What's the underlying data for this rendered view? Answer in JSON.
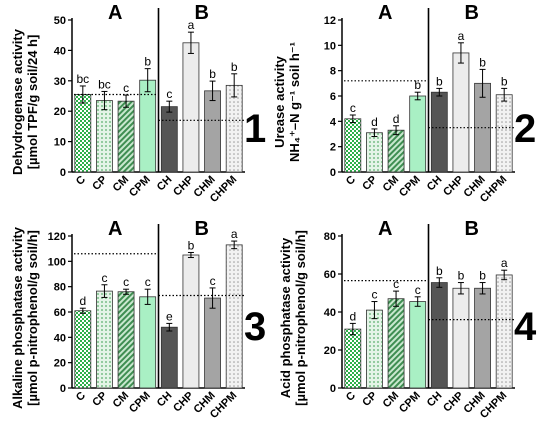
{
  "chart_data": [
    {
      "type": "bar",
      "panel_number": "1",
      "ylabel_line1": "Dehydrogenase activity",
      "ylabel_line2": "[µmol TPF/g soil/24 h]",
      "ylim": [
        0,
        50
      ],
      "yticks": [
        0,
        10,
        20,
        30,
        40,
        50
      ],
      "groups": [
        "A",
        "B"
      ],
      "categories": [
        "C",
        "CP",
        "CM",
        "CPM",
        "CH",
        "CHP",
        "CHM",
        "CHPM"
      ],
      "values": [
        25.5,
        23.5,
        23.3,
        30.2,
        21.5,
        42.5,
        26.7,
        28.5
      ],
      "errors": [
        2.8,
        3.0,
        2.0,
        3.8,
        1.8,
        3.5,
        3.2,
        3.8
      ],
      "letters": [
        "bc",
        "bc",
        "c",
        "b",
        "c",
        "a",
        "b",
        "b"
      ],
      "ref_lines": [
        25.5,
        17.0
      ]
    },
    {
      "type": "bar",
      "panel_number": "2",
      "ylabel_line1": "Urease activity",
      "ylabel_line2": "NH₄⁺–N g⁻¹ soil h⁻¹",
      "ylim": [
        0,
        12
      ],
      "yticks": [
        0,
        2,
        4,
        6,
        8,
        10,
        12
      ],
      "groups": [
        "A",
        "B"
      ],
      "categories": [
        "C",
        "CP",
        "CM",
        "CPM",
        "CH",
        "CHP",
        "CHM",
        "CHPM"
      ],
      "values": [
        4.2,
        3.1,
        3.3,
        6.0,
        6.3,
        9.4,
        7.0,
        6.1
      ],
      "errors": [
        0.3,
        0.3,
        0.35,
        0.3,
        0.3,
        0.8,
        1.1,
        0.5
      ],
      "letters": [
        "c",
        "d",
        "d",
        "b",
        "b",
        "a",
        "b",
        "b"
      ],
      "ref_lines": [
        7.2,
        3.5
      ]
    },
    {
      "type": "bar",
      "panel_number": "3",
      "ylabel_line1": "Alkaline phosphatase activity",
      "ylabel_line2": "[µmol p-nitrophenol/g soil/h]",
      "ylim": [
        0,
        120
      ],
      "yticks": [
        0,
        20,
        40,
        60,
        80,
        100,
        120
      ],
      "groups": [
        "A",
        "B"
      ],
      "categories": [
        "C",
        "CP",
        "CM",
        "CPM",
        "CH",
        "CHP",
        "CHM",
        "CHPM"
      ],
      "values": [
        61,
        76.5,
        76,
        72,
        48,
        105,
        71,
        113
      ],
      "errors": [
        2,
        5,
        2,
        6,
        3,
        2,
        8,
        3
      ],
      "letters": [
        "d",
        "c",
        "c",
        "c",
        "e",
        "b",
        "c",
        "a"
      ],
      "ref_lines": [
        106,
        73
      ]
    },
    {
      "type": "bar",
      "panel_number": "4",
      "ylabel_line1": "Acid phosphatase activity",
      "ylabel_line2": "[µmol p-nitrophenol/g soil/h]",
      "ylim": [
        0,
        80
      ],
      "yticks": [
        0,
        20,
        40,
        60,
        80
      ],
      "groups": [
        "A",
        "B"
      ],
      "categories": [
        "C",
        "CP",
        "CM",
        "CPM",
        "CH",
        "CHP",
        "CHM",
        "CHPM"
      ],
      "values": [
        31,
        41,
        47,
        45.5,
        55.5,
        52.5,
        52.5,
        59.5
      ],
      "errors": [
        3,
        4.5,
        4,
        2.5,
        2.5,
        3,
        3,
        2.5
      ],
      "letters": [
        "d",
        "c",
        "c",
        "c",
        "b",
        "b",
        "b",
        "a"
      ],
      "ref_lines": [
        56.5,
        36
      ]
    }
  ],
  "colors": {
    "bar_C": "#2db04a",
    "bar_CP": "#bfe3c6",
    "bar_CM": "#6fae7c",
    "bar_CPM": "#a9f0c4",
    "bar_CH": "#555555",
    "bar_CHP": "#ececec",
    "bar_CHM": "#a4a4a4",
    "bar_CHPM": "#d2d2d2"
  }
}
